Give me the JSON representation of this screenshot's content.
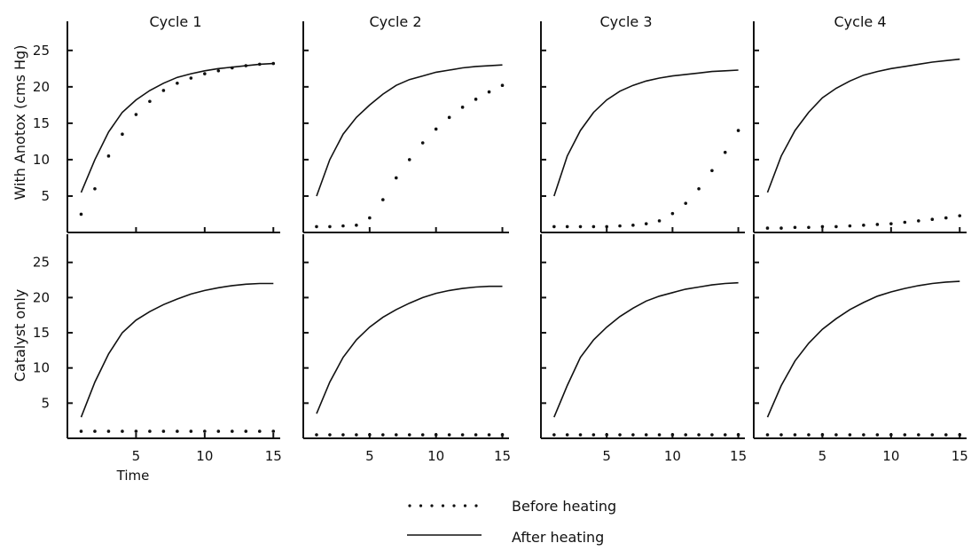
{
  "figure": {
    "row_labels": [
      "With Anotox (cms Hg)",
      "Catalyst only"
    ],
    "col_titles": [
      "Cycle 1",
      "Cycle 2",
      "Cycle 3",
      "Cycle 4"
    ],
    "x_axis_title": "Time",
    "x_ticks": [
      "5",
      "10",
      "15"
    ],
    "y_ticks": [
      "5",
      "10",
      "15",
      "20",
      "25"
    ],
    "legend": {
      "before": "Before heating",
      "after": "After heating"
    }
  },
  "chart_data": {
    "type": "line",
    "layout": "2x4 small multiples",
    "xlim": [
      0,
      15.5
    ],
    "ylim": [
      0,
      29
    ],
    "xlabel": "Time",
    "series_names": [
      "Before heating",
      "After heating"
    ],
    "styles": {
      "Before heating": "dotted",
      "After heating": "solid"
    },
    "panels": [
      {
        "row": "With Anotox (cms Hg)",
        "cycle": "Cycle 1",
        "before_x": [
          1,
          2,
          3,
          4,
          5,
          6,
          7,
          8,
          9,
          10,
          11,
          12,
          13,
          14,
          15
        ],
        "before_y": [
          2.5,
          6,
          10.5,
          13.5,
          16.2,
          18,
          19.5,
          20.5,
          21.2,
          21.8,
          22.2,
          22.6,
          22.9,
          23.1,
          23.2
        ],
        "after_x": [
          1,
          2,
          3,
          4,
          5,
          6,
          7,
          8,
          9,
          10,
          11,
          12,
          13,
          14,
          15
        ],
        "after_y": [
          5.5,
          10,
          13.8,
          16.5,
          18.2,
          19.5,
          20.5,
          21.3,
          21.8,
          22.2,
          22.5,
          22.7,
          22.9,
          23.1,
          23.2
        ]
      },
      {
        "row": "With Anotox (cms Hg)",
        "cycle": "Cycle 2",
        "before_x": [
          1,
          2,
          3,
          4,
          5,
          6,
          7,
          8,
          9,
          10,
          11,
          12,
          13,
          14,
          15
        ],
        "before_y": [
          0.8,
          0.8,
          0.9,
          1.0,
          2.0,
          4.5,
          7.5,
          10,
          12.3,
          14.2,
          15.8,
          17.2,
          18.3,
          19.3,
          20.2
        ],
        "after_x": [
          1,
          2,
          3,
          4,
          5,
          6,
          7,
          8,
          9,
          10,
          11,
          12,
          13,
          14,
          15
        ],
        "after_y": [
          5,
          10,
          13.5,
          15.8,
          17.5,
          19,
          20.2,
          21,
          21.5,
          22,
          22.3,
          22.6,
          22.8,
          22.9,
          23
        ]
      },
      {
        "row": "With Anotox (cms Hg)",
        "cycle": "Cycle 3",
        "before_x": [
          1,
          2,
          3,
          4,
          5,
          6,
          7,
          8,
          9,
          10,
          11,
          12,
          13,
          14,
          15
        ],
        "before_y": [
          0.8,
          0.8,
          0.8,
          0.8,
          0.8,
          0.9,
          1.0,
          1.2,
          1.6,
          2.6,
          4.0,
          6.0,
          8.5,
          11,
          14
        ],
        "after_x": [
          1,
          2,
          3,
          4,
          5,
          6,
          7,
          8,
          9,
          10,
          11,
          12,
          13,
          14,
          15
        ],
        "after_y": [
          5,
          10.5,
          14,
          16.5,
          18.2,
          19.4,
          20.2,
          20.8,
          21.2,
          21.5,
          21.7,
          21.9,
          22.1,
          22.2,
          22.3
        ]
      },
      {
        "row": "With Anotox (cms Hg)",
        "cycle": "Cycle 4",
        "before_x": [
          1,
          2,
          3,
          4,
          5,
          6,
          7,
          8,
          9,
          10,
          11,
          12,
          13,
          14,
          15
        ],
        "before_y": [
          0.6,
          0.6,
          0.7,
          0.7,
          0.8,
          0.8,
          0.9,
          1.0,
          1.1,
          1.2,
          1.4,
          1.6,
          1.8,
          2.0,
          2.3
        ],
        "after_x": [
          1,
          2,
          3,
          4,
          5,
          6,
          7,
          8,
          9,
          10,
          11,
          12,
          13,
          14,
          15
        ],
        "after_y": [
          5.5,
          10.5,
          14,
          16.5,
          18.5,
          19.8,
          20.8,
          21.6,
          22.1,
          22.5,
          22.8,
          23.1,
          23.4,
          23.6,
          23.8
        ]
      },
      {
        "row": "Catalyst only",
        "cycle": "Cycle 1",
        "before_x": [
          1,
          2,
          3,
          4,
          5,
          6,
          7,
          8,
          9,
          10,
          11,
          12,
          13,
          14,
          15
        ],
        "before_y": [
          1,
          1,
          1,
          1,
          1,
          1,
          1,
          1,
          1,
          1,
          1,
          1,
          1,
          1,
          1
        ],
        "after_x": [
          1,
          2,
          3,
          4,
          5,
          6,
          7,
          8,
          9,
          10,
          11,
          12,
          13,
          14,
          15
        ],
        "after_y": [
          3,
          8,
          12,
          15,
          16.8,
          18,
          19,
          19.8,
          20.5,
          21,
          21.4,
          21.7,
          21.9,
          22,
          22
        ]
      },
      {
        "row": "Catalyst only",
        "cycle": "Cycle 2",
        "before_x": [
          1,
          2,
          3,
          4,
          5,
          6,
          7,
          8,
          9,
          10,
          11,
          12,
          13,
          14,
          15
        ],
        "before_y": [
          0.5,
          0.5,
          0.5,
          0.5,
          0.5,
          0.5,
          0.5,
          0.5,
          0.5,
          0.5,
          0.5,
          0.5,
          0.5,
          0.5,
          0.5
        ],
        "after_x": [
          1,
          2,
          3,
          4,
          5,
          6,
          7,
          8,
          9,
          10,
          11,
          12,
          13,
          14,
          15
        ],
        "after_y": [
          3.5,
          8,
          11.5,
          14,
          15.8,
          17.2,
          18.3,
          19.2,
          20,
          20.6,
          21,
          21.3,
          21.5,
          21.6,
          21.6
        ]
      },
      {
        "row": "Catalyst only",
        "cycle": "Cycle 3",
        "before_x": [
          1,
          2,
          3,
          4,
          5,
          6,
          7,
          8,
          9,
          10,
          11,
          12,
          13,
          14,
          15
        ],
        "before_y": [
          0.5,
          0.5,
          0.5,
          0.5,
          0.5,
          0.5,
          0.5,
          0.5,
          0.5,
          0.5,
          0.5,
          0.5,
          0.5,
          0.5,
          0.5
        ],
        "after_x": [
          1,
          2,
          3,
          4,
          5,
          6,
          7,
          8,
          9,
          10,
          11,
          12,
          13,
          14,
          15
        ],
        "after_y": [
          3,
          7.5,
          11.5,
          14,
          15.8,
          17.3,
          18.5,
          19.5,
          20.2,
          20.7,
          21.2,
          21.5,
          21.8,
          22,
          22.1
        ]
      },
      {
        "row": "Catalyst only",
        "cycle": "Cycle 4",
        "before_x": [
          1,
          2,
          3,
          4,
          5,
          6,
          7,
          8,
          9,
          10,
          11,
          12,
          13,
          14,
          15
        ],
        "before_y": [
          0.5,
          0.5,
          0.5,
          0.5,
          0.5,
          0.5,
          0.5,
          0.5,
          0.5,
          0.5,
          0.5,
          0.5,
          0.5,
          0.5,
          0.5
        ],
        "after_x": [
          1,
          2,
          3,
          4,
          5,
          6,
          7,
          8,
          9,
          10,
          11,
          12,
          13,
          14,
          15
        ],
        "after_y": [
          3,
          7.5,
          11,
          13.5,
          15.5,
          17,
          18.3,
          19.3,
          20.2,
          20.8,
          21.3,
          21.7,
          22,
          22.2,
          22.3
        ]
      }
    ]
  }
}
